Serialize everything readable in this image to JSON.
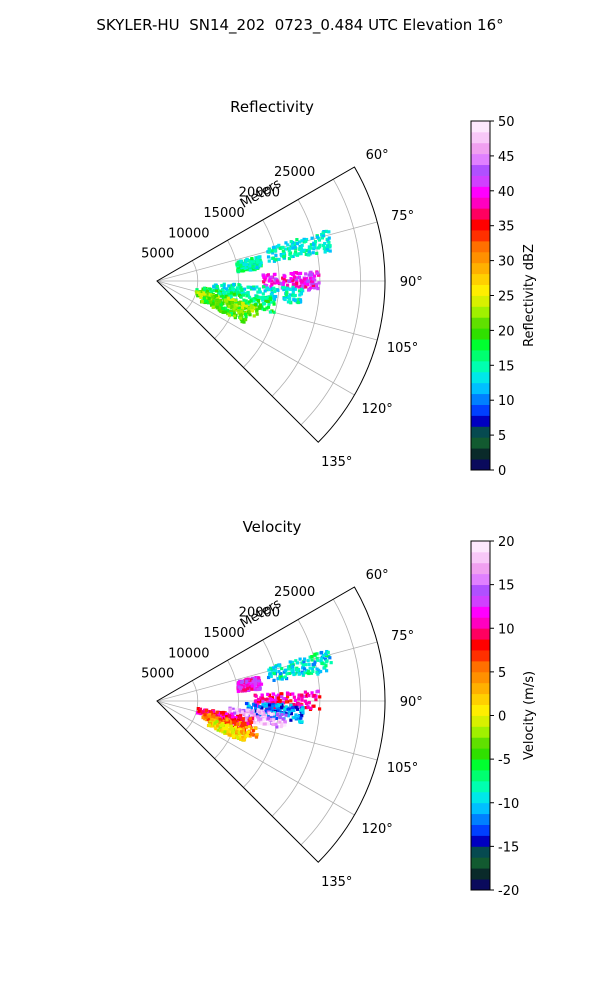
{
  "suptitle": "SKYLER-HU  SN14_202  0723_0.484 UTC Elevation 16°",
  "chart_data": [
    {
      "type": "polar-sector",
      "title": "Reflectivity",
      "radial_label": "Meters",
      "theta_range_deg": [
        60,
        135
      ],
      "r_max": 28000,
      "radial_ticks": [
        "5000",
        "10000",
        "15000",
        "20000",
        "25000"
      ],
      "angle_ticks": [
        "60°",
        "75°",
        "90°",
        "105°",
        "120°",
        "135°"
      ],
      "grid": true,
      "colorbar": {
        "label": "Reflectivity dBZ",
        "min": 0,
        "max": 50,
        "ticks": [
          "0",
          "5",
          "10",
          "15",
          "20",
          "25",
          "30",
          "35",
          "40",
          "45",
          "50"
        ],
        "colors": [
          "#0a0a5c",
          "#0a2a2a",
          "#125a30",
          "#064a50",
          "#0000c0",
          "#0040ff",
          "#0080ff",
          "#00c0ff",
          "#00e8e8",
          "#00ffb0",
          "#00ff70",
          "#00ff30",
          "#30e000",
          "#60e000",
          "#a0f000",
          "#d8f000",
          "#ffee00",
          "#ffd000",
          "#ffb000",
          "#ff9000",
          "#ff7000",
          "#ff3000",
          "#ff0000",
          "#ff0060",
          "#ff00c0",
          "#ff00ff",
          "#d040ff",
          "#b050ff",
          "#e080ff",
          "#f0a0f0",
          "#f8c8f8",
          "#fde8fd"
        ]
      },
      "echo_regions": [
        {
          "theta": 77,
          "r_from": 14000,
          "r_to": 22000,
          "value": 14
        },
        {
          "theta": 80,
          "r_from": 10000,
          "r_to": 13000,
          "value": 15
        },
        {
          "theta": 90,
          "r_from": 13000,
          "r_to": 20000,
          "value": 40
        },
        {
          "theta": 96,
          "r_from": 7000,
          "r_to": 18000,
          "value": 14
        },
        {
          "theta": 102,
          "r_from": 5000,
          "r_to": 15000,
          "value": 17
        },
        {
          "theta": 107,
          "r_from": 5000,
          "r_to": 13000,
          "value": 22
        },
        {
          "theta": 112,
          "r_from": 6000,
          "r_to": 12000,
          "value": 20
        }
      ]
    },
    {
      "type": "polar-sector",
      "title": "Velocity",
      "radial_label": "Meters",
      "theta_range_deg": [
        60,
        135
      ],
      "r_max": 28000,
      "radial_ticks": [
        "5000",
        "10000",
        "15000",
        "20000",
        "25000"
      ],
      "angle_ticks": [
        "60°",
        "75°",
        "90°",
        "105°",
        "120°",
        "135°"
      ],
      "grid": true,
      "colorbar": {
        "label": "Velocity (m/s)",
        "min": -20,
        "max": 20,
        "ticks": [
          "-20",
          "-15",
          "-10",
          "-5",
          "0",
          "5",
          "10",
          "15",
          "20"
        ],
        "colors": [
          "#0a0a5c",
          "#0a2a2a",
          "#125a30",
          "#064a50",
          "#0000c0",
          "#0040ff",
          "#0080ff",
          "#00c0ff",
          "#00e8e8",
          "#00ffb0",
          "#00ff70",
          "#00ff30",
          "#30e000",
          "#60e000",
          "#a0f000",
          "#d8f000",
          "#ffee00",
          "#ffd000",
          "#ffb000",
          "#ff9000",
          "#ff7000",
          "#ff3000",
          "#ff0000",
          "#ff0060",
          "#ff00c0",
          "#ff00ff",
          "#d040ff",
          "#b050ff",
          "#e080ff",
          "#f0a0f0",
          "#f8c8f8",
          "#fde8fd"
        ]
      },
      "echo_regions": [
        {
          "theta": 77,
          "r_from": 14000,
          "r_to": 22000,
          "value": -9
        },
        {
          "theta": 80,
          "r_from": 10000,
          "r_to": 13000,
          "value": 12
        },
        {
          "theta": 90,
          "r_from": 12000,
          "r_to": 20000,
          "value": 10
        },
        {
          "theta": 95,
          "r_from": 11000,
          "r_to": 18000,
          "value": -12
        },
        {
          "theta": 99,
          "r_from": 9000,
          "r_to": 16000,
          "value": 17
        },
        {
          "theta": 103,
          "r_from": 5000,
          "r_to": 12000,
          "value": 9
        },
        {
          "theta": 108,
          "r_from": 6000,
          "r_to": 13000,
          "value": 5
        },
        {
          "theta": 112,
          "r_from": 7000,
          "r_to": 12000,
          "value": 1
        }
      ]
    }
  ]
}
